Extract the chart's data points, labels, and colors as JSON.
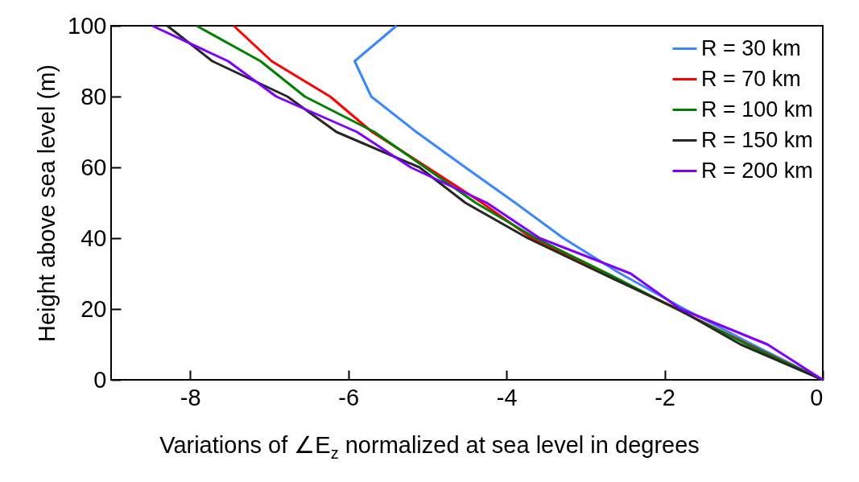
{
  "chart_data": {
    "type": "line",
    "xlabel": "Variations of ∠E$_{z}$  normalized at sea level in degrees",
    "ylabel": "Height above sea level (m)",
    "series": [
      {
        "name": "R = 30 km",
        "color": "#3a86ff",
        "x": [
          0,
          -0.89,
          -1.75,
          -2.56,
          -3.28,
          -3.89,
          -4.52,
          -5.14,
          -5.71,
          -5.92,
          -5.39
        ],
        "values": [
          0,
          10,
          20,
          30,
          40,
          50,
          60,
          70,
          80,
          90,
          100
        ]
      },
      {
        "name": "R = 70 km",
        "color": "#ff0000",
        "x": [
          0,
          -0.94,
          -1.85,
          -2.77,
          -3.68,
          -4.31,
          -5.0,
          -5.7,
          -6.23,
          -6.97,
          -7.45
        ],
        "values": [
          0,
          10,
          20,
          30,
          40,
          50,
          60,
          70,
          80,
          90,
          100
        ]
      },
      {
        "name": "R = 100 km",
        "color": "#008000",
        "x": [
          0,
          -0.96,
          -1.85,
          -2.72,
          -3.63,
          -4.39,
          -5.03,
          -5.67,
          -6.55,
          -7.11,
          -7.92
        ],
        "values": [
          0,
          10,
          20,
          30,
          40,
          50,
          60,
          70,
          80,
          90,
          100
        ]
      },
      {
        "name": "R = 150 km",
        "color": "#262626",
        "x": [
          0,
          -1.04,
          -1.83,
          -2.79,
          -3.73,
          -4.52,
          -5.1,
          -6.15,
          -6.77,
          -7.72,
          -8.29
        ],
        "values": [
          0,
          10,
          20,
          30,
          40,
          50,
          60,
          70,
          80,
          90,
          100
        ]
      },
      {
        "name": "R = 200 km",
        "color": "#7f00ff",
        "x": [
          0,
          -0.7,
          -1.8,
          -2.43,
          -3.58,
          -4.25,
          -5.21,
          -5.89,
          -6.91,
          -7.52,
          -8.48
        ],
        "values": [
          0,
          10,
          20,
          30,
          40,
          50,
          60,
          70,
          80,
          90,
          100
        ]
      }
    ],
    "xlim": [
      -9,
      0
    ],
    "xticks": [
      -8,
      -6,
      -4,
      -2,
      0
    ],
    "ylim": [
      0,
      100
    ],
    "yticks": [
      0,
      20,
      40,
      60,
      80,
      100
    ],
    "grid": false,
    "legend": "top right",
    "line_style": "solid",
    "marker": "none"
  }
}
